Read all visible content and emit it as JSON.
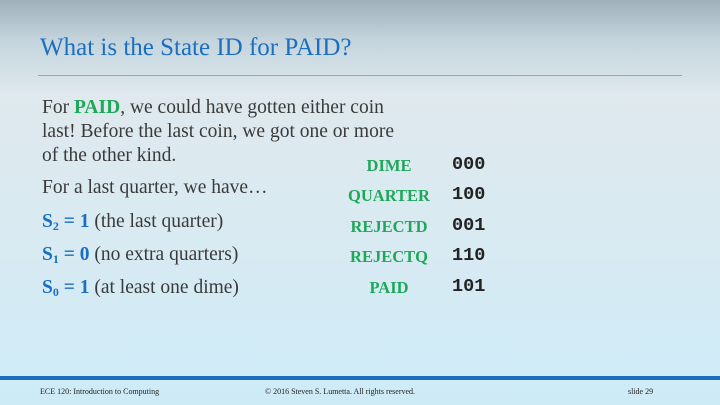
{
  "title": "What is the State ID for PAID?",
  "para1": {
    "line1_pre": "For ",
    "line1_bold": "PAID",
    "line1_post": ", we could have gotten either coin",
    "line2": "last!  Before the last coin, we got one or more",
    "line3": "of the other kind."
  },
  "quarter_line": "For a last quarter, we have…",
  "bits": [
    {
      "var": "S",
      "sub": "2",
      "eq": " = 1",
      "desc": " (the last quarter)"
    },
    {
      "var": "S",
      "sub": "1",
      "eq": " = 0",
      "desc": " (no extra quarters)"
    },
    {
      "var": "S",
      "sub": "0",
      "eq": " = 1",
      "desc": " (at least one dime)"
    }
  ],
  "states": [
    {
      "name": "DIME",
      "code": "000"
    },
    {
      "name": "QUARTER",
      "code": "100"
    },
    {
      "name": "REJECTD",
      "code": "001"
    },
    {
      "name": "REJECTQ",
      "code": "110"
    },
    {
      "name": "PAID",
      "code": "101"
    }
  ],
  "footer": {
    "course": "ECE 120: Introduction to Computing",
    "copyright": "© 2016 Steven S. Lumetta.  All rights reserved.",
    "slide": "slide 29"
  },
  "colors": {
    "title": "#1a6fc0",
    "accent_green": "#1fa85a",
    "rule": "#b8a650"
  }
}
